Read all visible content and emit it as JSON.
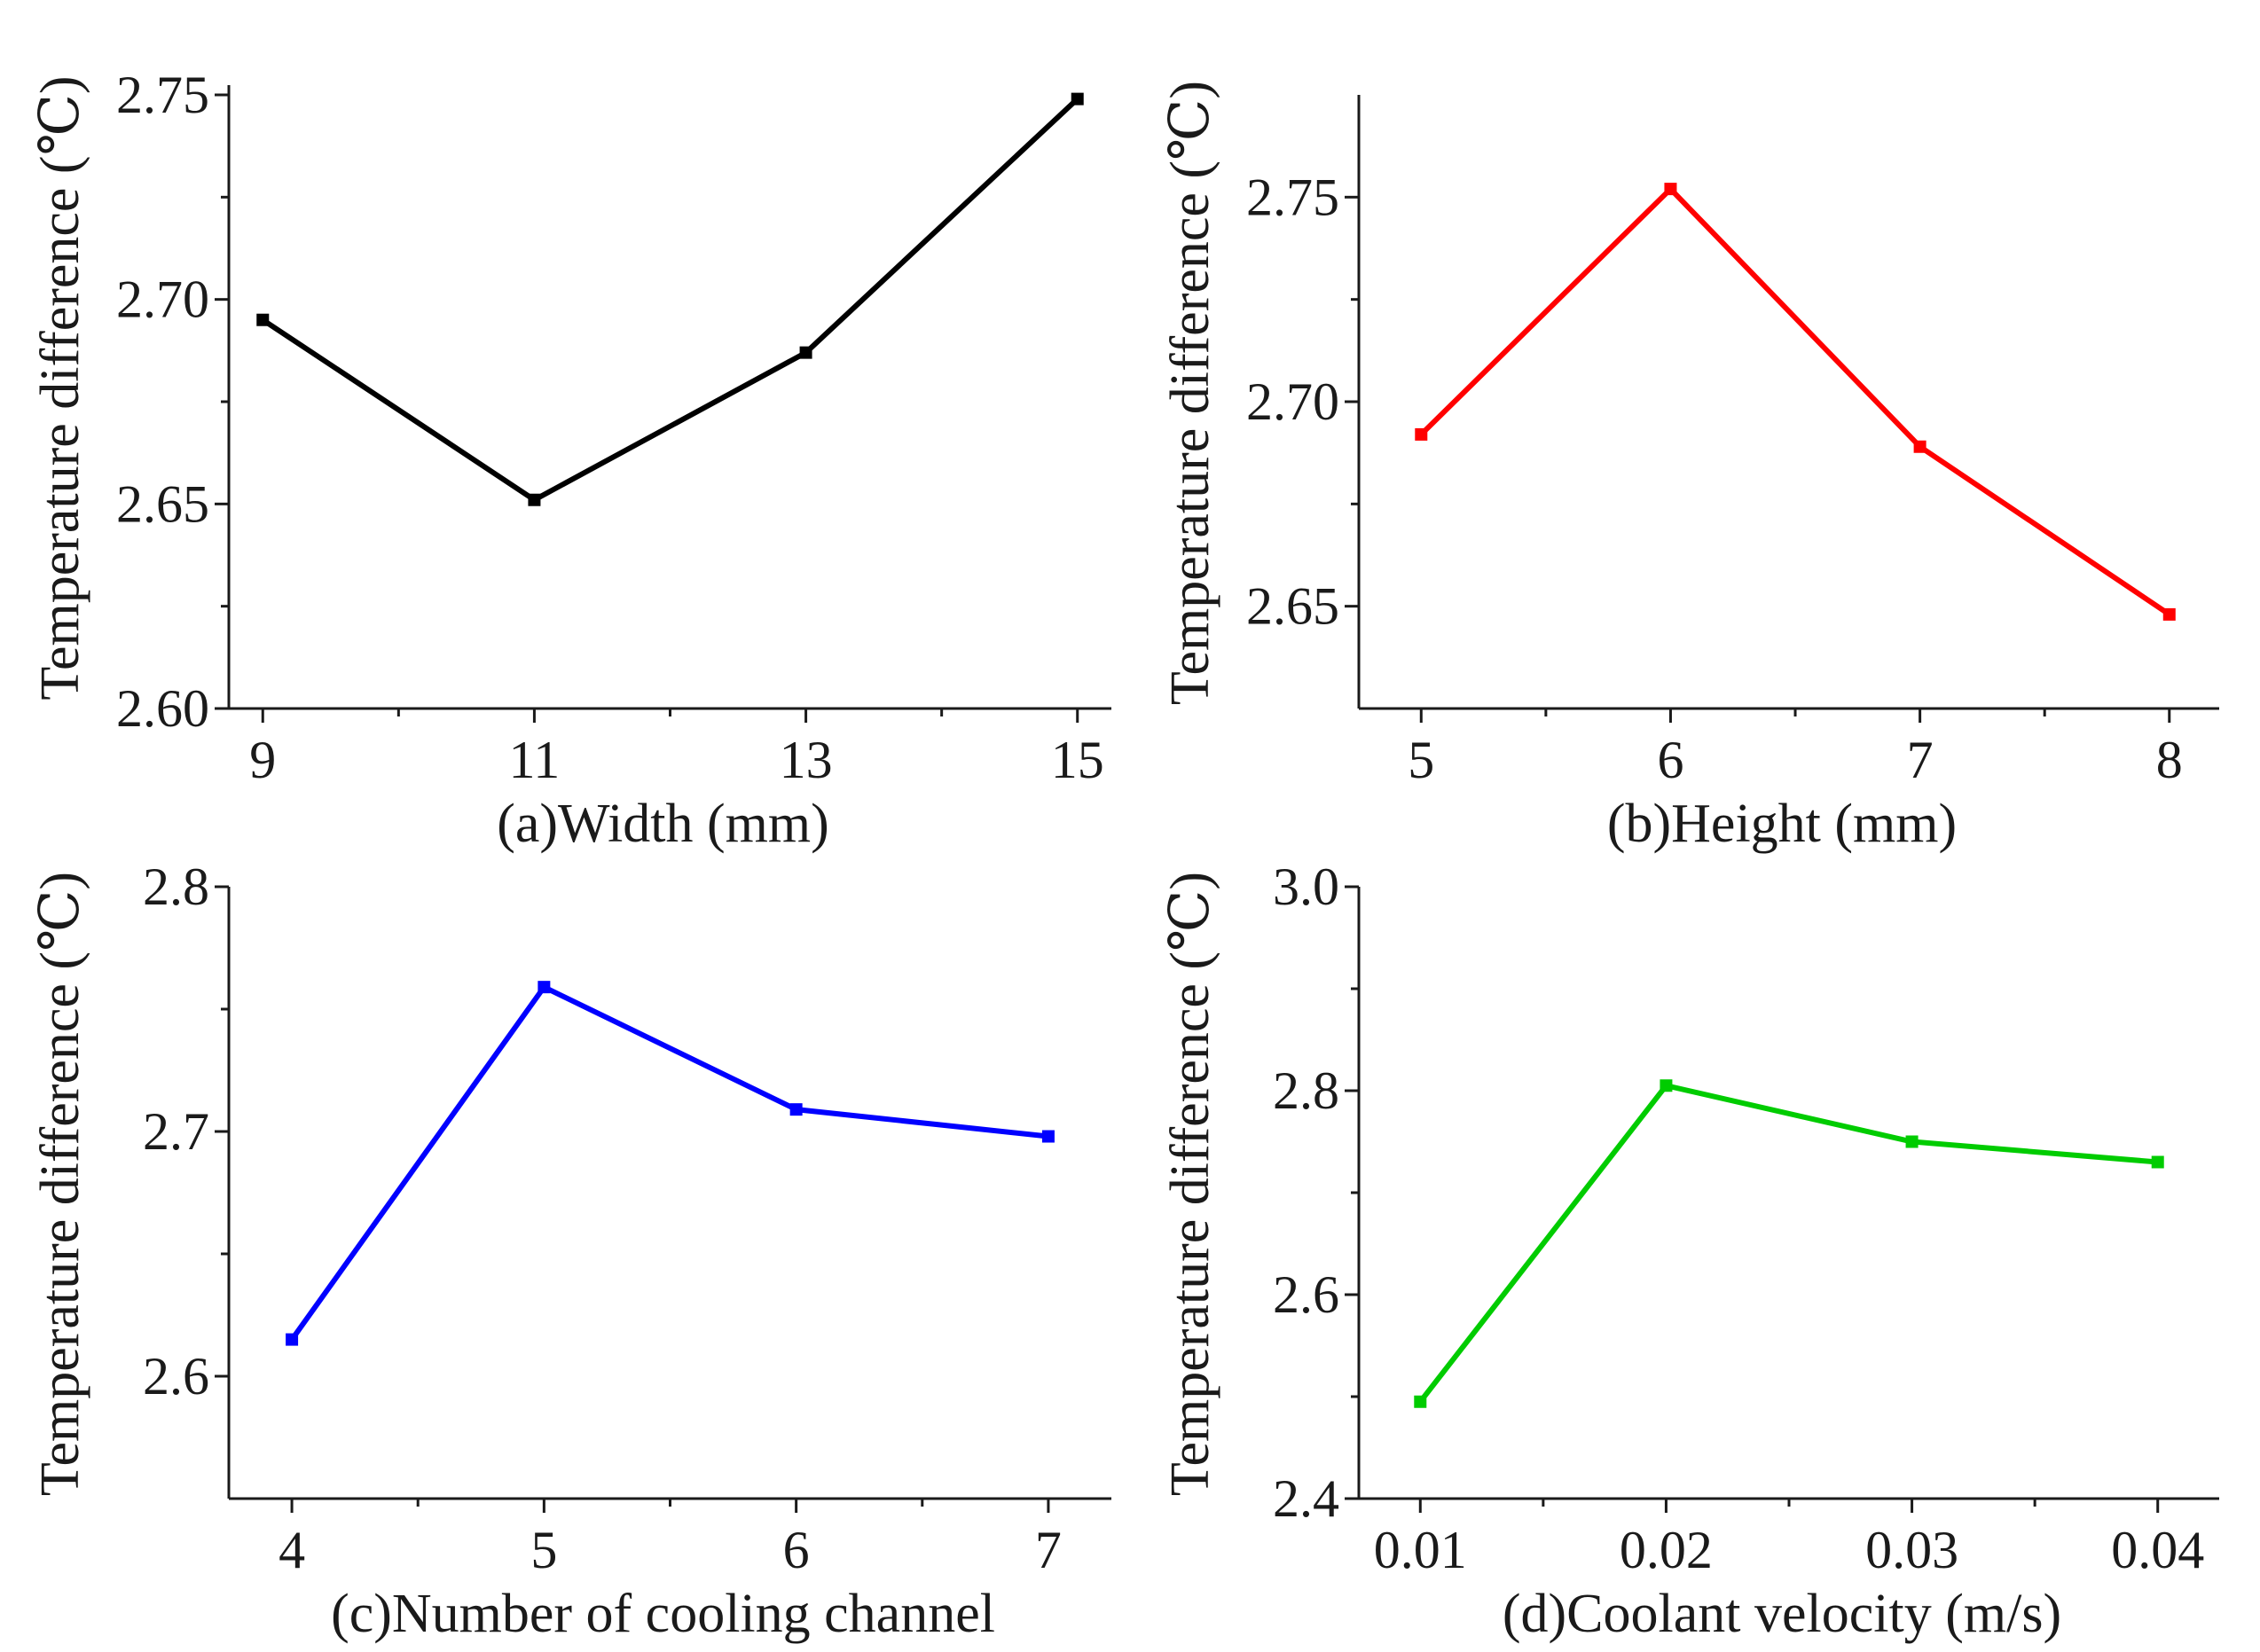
{
  "chart_data": [
    {
      "id": "a",
      "type": "line",
      "x": [
        9,
        11,
        13,
        15
      ],
      "values": [
        2.695,
        2.651,
        2.687,
        2.749
      ],
      "xticks": [
        "9",
        "11",
        "13",
        "15"
      ],
      "yticks": [
        "2.60",
        "2.65",
        "2.70",
        "2.75"
      ],
      "xlim": [
        8.75,
        15.25
      ],
      "ylim": [
        2.6,
        2.75
      ],
      "xlabel": "(a)Width (mm)",
      "ylabel": "Temperature difference (℃)",
      "color": "#000000",
      "grid": false
    },
    {
      "id": "b",
      "type": "line",
      "x": [
        5,
        6,
        7,
        8
      ],
      "values": [
        2.692,
        2.752,
        2.689,
        2.648
      ],
      "xticks": [
        "5",
        "6",
        "7",
        "8"
      ],
      "yticks": [
        "2.65",
        "2.70",
        "2.75"
      ],
      "xlim": [
        4.75,
        8.2
      ],
      "ylim": [
        2.625,
        2.775
      ],
      "xlabel": "(b)Height (mm)",
      "ylabel": "Temperature difference (℃)",
      "color": "#ff0000",
      "grid": false
    },
    {
      "id": "c",
      "type": "line",
      "x": [
        4,
        5,
        6,
        7
      ],
      "values": [
        2.615,
        2.759,
        2.709,
        2.698
      ],
      "xticks": [
        "4",
        "5",
        "6",
        "7"
      ],
      "yticks": [
        "2.6",
        "2.7",
        "2.8"
      ],
      "xlim": [
        3.75,
        7.25
      ],
      "ylim": [
        2.55,
        2.8
      ],
      "xlabel": "(c)Number of cooling channel",
      "ylabel": "Temperature difference (℃)",
      "color": "#0000ff",
      "grid": false
    },
    {
      "id": "d",
      "type": "line",
      "x": [
        0.01,
        0.02,
        0.03,
        0.04
      ],
      "values": [
        2.495,
        2.805,
        2.75,
        2.73
      ],
      "xticks": [
        "0.01",
        "0.02",
        "0.03",
        "0.04"
      ],
      "yticks": [
        "2.4",
        "2.6",
        "2.8",
        "3.0"
      ],
      "xlim": [
        0.0075,
        0.0425
      ],
      "ylim": [
        2.4,
        3.0
      ],
      "xlabel": "(d)Coolant velocity (m/s)",
      "ylabel": "Temperature difference (℃)",
      "color": "#00cc00",
      "grid": false
    }
  ]
}
